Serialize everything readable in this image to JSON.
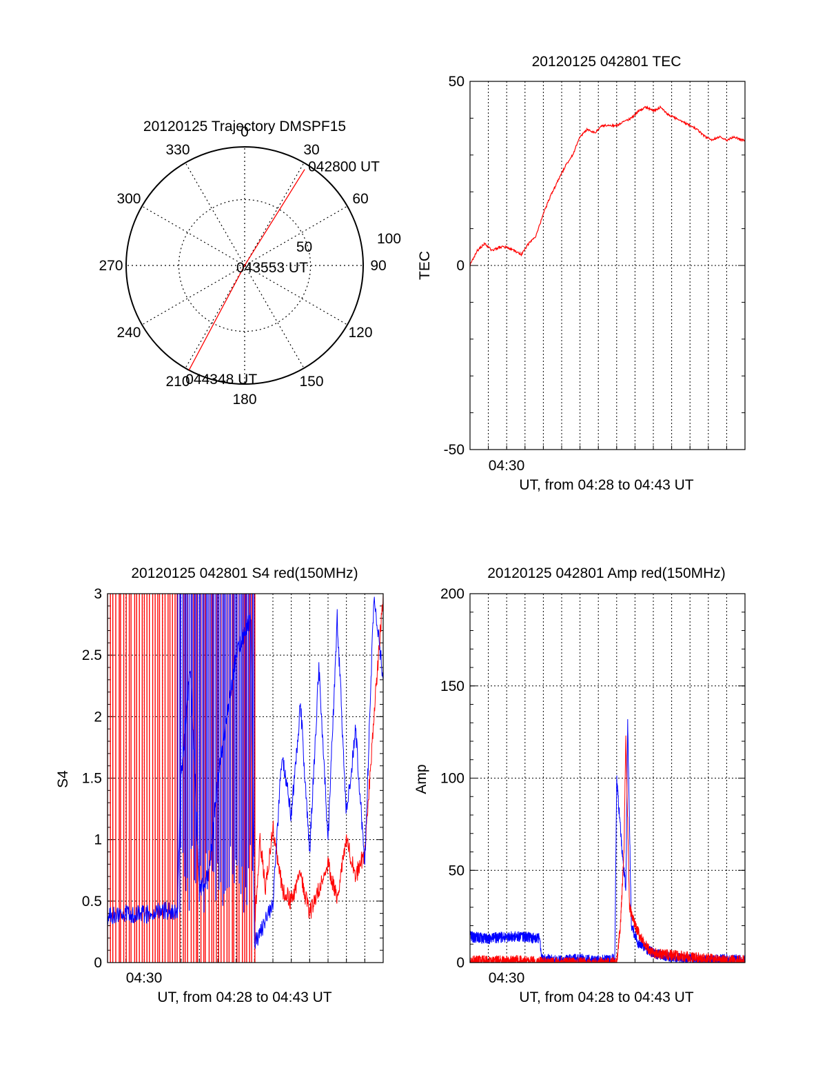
{
  "chart_data": [
    {
      "type": "polar",
      "title": "20120125 Trajectory DMSPF15",
      "azimuth_ticks": [
        "0",
        "30",
        "60",
        "90",
        "120",
        "150",
        "180",
        "210",
        "240",
        "270",
        "300",
        "330"
      ],
      "radial_ticks": [
        "50",
        "100"
      ],
      "trajectory": [
        {
          "azimuth": 32,
          "zenith": 86,
          "label": "042800 UT"
        },
        {
          "azimuth": 0,
          "zenith": 0,
          "label": "043553 UT"
        },
        {
          "azimuth": 208,
          "zenith": 90,
          "label": "044348 UT"
        }
      ],
      "colors": {
        "trajectory": "#ff0000",
        "grid": "#000000"
      }
    },
    {
      "type": "line",
      "title": "20120125 042801 TEC",
      "ylabel": "TEC",
      "xlabel": "UT, from 04:28 to 04:43 UT",
      "xtick_label": "04:30",
      "ylim": [
        -50,
        50
      ],
      "yticks": [
        "50",
        "0",
        "-50"
      ],
      "xlim_minutes": [
        0,
        15
      ],
      "grid": true,
      "series": [
        {
          "color": "#ff0000",
          "points": [
            [
              0,
              0
            ],
            [
              0.4,
              4
            ],
            [
              0.8,
              6
            ],
            [
              1.2,
              4
            ],
            [
              1.6,
              5
            ],
            [
              2.0,
              5
            ],
            [
              2.4,
              4
            ],
            [
              2.8,
              3
            ],
            [
              3.2,
              6
            ],
            [
              3.6,
              8
            ],
            [
              4.0,
              14
            ],
            [
              4.4,
              19
            ],
            [
              4.8,
              23
            ],
            [
              5.2,
              27
            ],
            [
              5.6,
              30
            ],
            [
              6.0,
              35
            ],
            [
              6.4,
              37
            ],
            [
              6.8,
              36
            ],
            [
              7.2,
              38
            ],
            [
              7.6,
              38
            ],
            [
              8.0,
              38
            ],
            [
              8.4,
              39
            ],
            [
              8.8,
              40
            ],
            [
              9.2,
              42
            ],
            [
              9.6,
              43
            ],
            [
              10.0,
              42
            ],
            [
              10.4,
              43
            ],
            [
              10.8,
              41
            ],
            [
              11.2,
              40
            ],
            [
              11.6,
              39
            ],
            [
              12.0,
              38
            ],
            [
              12.4,
              37
            ],
            [
              12.8,
              35
            ],
            [
              13.2,
              34
            ],
            [
              13.6,
              35
            ],
            [
              14.0,
              34
            ],
            [
              14.4,
              35
            ],
            [
              14.8,
              34
            ],
            [
              15.0,
              34
            ]
          ]
        }
      ]
    },
    {
      "type": "line",
      "title": "20120125 042801 S4 red(150MHz)",
      "ylabel": "S4",
      "xlabel": "UT, from 04:28 to 04:43 UT",
      "xtick_label": "04:30",
      "ylim": [
        0,
        3
      ],
      "yticks": [
        "3",
        "2.5",
        "2",
        "1.5",
        "1",
        "0.5",
        "0"
      ],
      "xlim_minutes": [
        0,
        15
      ],
      "grid": true,
      "series": [
        {
          "color": "#ff0000",
          "note_visible": "dense spikes to top before ~04:36",
          "points": [
            [
              8,
              0.3
            ],
            [
              8.3,
              1.0
            ],
            [
              8.6,
              0.6
            ],
            [
              9.0,
              1.1
            ],
            [
              9.5,
              0.6
            ],
            [
              10.0,
              0.5
            ],
            [
              10.5,
              0.7
            ],
            [
              11.0,
              0.4
            ],
            [
              11.5,
              0.6
            ],
            [
              12.0,
              0.8
            ],
            [
              12.5,
              0.5
            ],
            [
              13.0,
              1.0
            ],
            [
              13.5,
              0.7
            ],
            [
              14.0,
              0.9
            ],
            [
              14.5,
              2.0
            ],
            [
              15,
              3.0
            ]
          ]
        },
        {
          "color": "#0000ff",
          "points": [
            [
              0,
              0.38
            ],
            [
              1,
              0.4
            ],
            [
              2,
              0.39
            ],
            [
              3,
              0.42
            ],
            [
              3.8,
              0.42
            ],
            [
              4.0,
              1.5
            ],
            [
              4.5,
              2.4
            ],
            [
              5.0,
              0.6
            ],
            [
              5.5,
              0.7
            ],
            [
              6.0,
              1.5
            ],
            [
              7.0,
              2.5
            ],
            [
              7.8,
              2.8
            ],
            [
              8.0,
              0.15
            ],
            [
              8.5,
              0.3
            ],
            [
              9.0,
              0.5
            ],
            [
              9.5,
              1.7
            ],
            [
              10.0,
              1.2
            ],
            [
              10.5,
              2.1
            ],
            [
              11.0,
              0.9
            ],
            [
              11.5,
              2.4
            ],
            [
              12.0,
              1.0
            ],
            [
              12.5,
              2.8
            ],
            [
              13.0,
              1.2
            ],
            [
              13.5,
              1.9
            ],
            [
              14.0,
              0.8
            ],
            [
              14.5,
              3.0
            ],
            [
              15,
              2.3
            ]
          ]
        }
      ]
    },
    {
      "type": "line",
      "title": "20120125 042801 Amp red(150MHz)",
      "ylabel": "Amp",
      "xlabel": "UT, from 04:28 to 04:43 UT",
      "xtick_label": "04:30",
      "ylim": [
        0,
        200
      ],
      "yticks": [
        "200",
        "150",
        "100",
        "50",
        "0"
      ],
      "xlim_minutes": [
        0,
        15
      ],
      "grid": true,
      "series": [
        {
          "color": "#0000ff",
          "points": [
            [
              0,
              14
            ],
            [
              1,
              13
            ],
            [
              2,
              14
            ],
            [
              3,
              14
            ],
            [
              3.8,
              13
            ],
            [
              3.9,
              2
            ],
            [
              5,
              1
            ],
            [
              6,
              2
            ],
            [
              7,
              1
            ],
            [
              7.9,
              2
            ],
            [
              8.0,
              100
            ],
            [
              8.3,
              60
            ],
            [
              8.5,
              40
            ],
            [
              8.6,
              130
            ],
            [
              8.8,
              20
            ],
            [
              9.2,
              10
            ],
            [
              10,
              5
            ],
            [
              11,
              3
            ],
            [
              12,
              2
            ],
            [
              13,
              1
            ],
            [
              14,
              2
            ],
            [
              15,
              1
            ]
          ]
        },
        {
          "color": "#ff0000",
          "points": [
            [
              0,
              1
            ],
            [
              1,
              1
            ],
            [
              2,
              1
            ],
            [
              3,
              1
            ],
            [
              4,
              0
            ],
            [
              6,
              0
            ],
            [
              8.0,
              0
            ],
            [
              8.2,
              20
            ],
            [
              8.4,
              60
            ],
            [
              8.5,
              125
            ],
            [
              8.7,
              30
            ],
            [
              9.0,
              20
            ],
            [
              9.5,
              10
            ],
            [
              10,
              5
            ],
            [
              11,
              4
            ],
            [
              12,
              3
            ],
            [
              13,
              2
            ],
            [
              14,
              1
            ],
            [
              15,
              1
            ]
          ]
        }
      ]
    }
  ]
}
